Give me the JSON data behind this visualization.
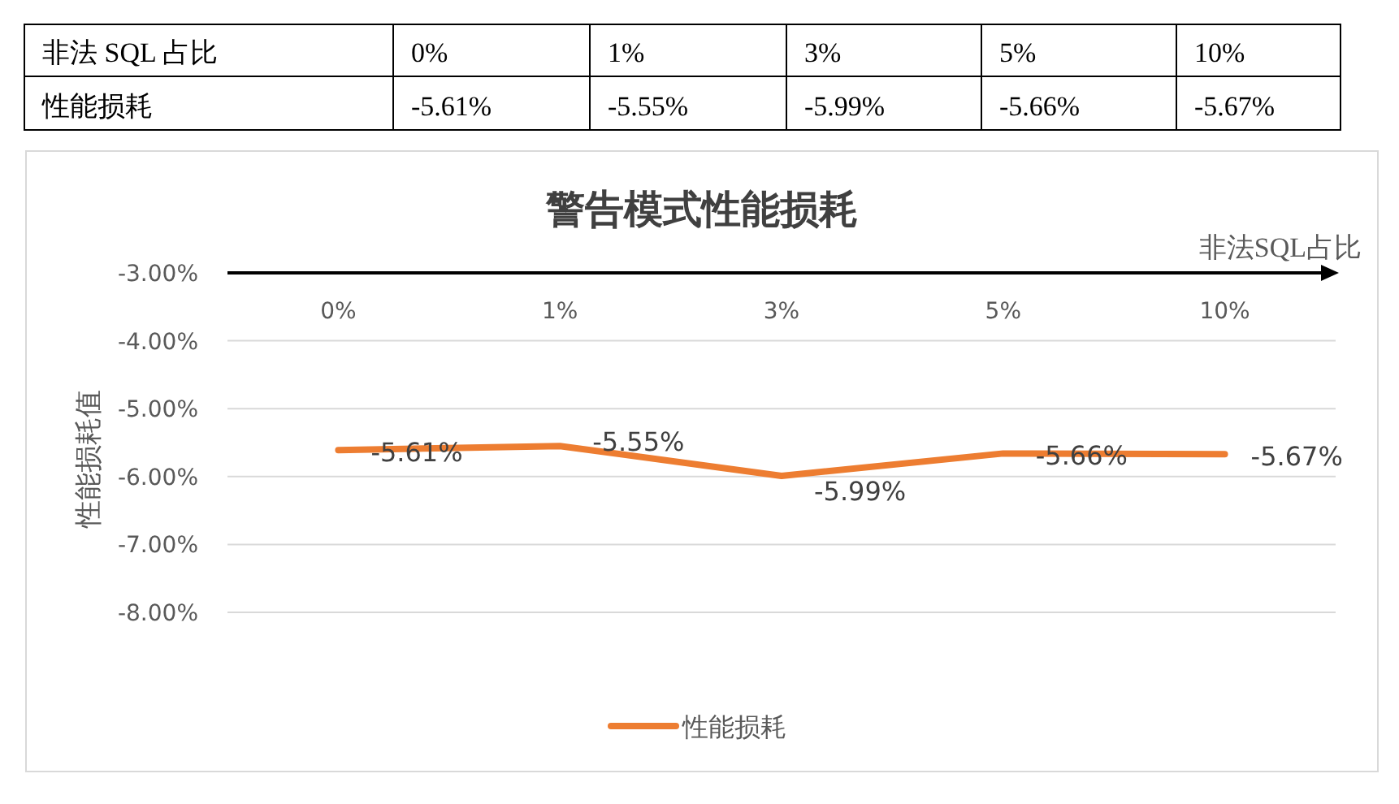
{
  "chart_data": {
    "type": "line",
    "title": "警告模式性能损耗",
    "xlabel": "非法SQL占比",
    "ylabel": "性能损耗值",
    "categories": [
      "0%",
      "1%",
      "3%",
      "5%",
      "10%"
    ],
    "series": [
      {
        "name": "性能损耗",
        "color": "#ed7d31",
        "values": [
          -5.61,
          -5.55,
          -5.99,
          -5.66,
          -5.67
        ],
        "value_labels": [
          "-5.61%",
          "-5.55%",
          "-5.99%",
          "-5.66%",
          "-5.67%"
        ]
      }
    ],
    "ylim": [
      -8,
      -3
    ],
    "yticks": [
      {
        "value": -3,
        "label": "-3.00%"
      },
      {
        "value": -4,
        "label": "-4.00%"
      },
      {
        "value": -5,
        "label": "-5.00%"
      },
      {
        "value": -6,
        "label": "-6.00%"
      },
      {
        "value": -7,
        "label": "-7.00%"
      },
      {
        "value": -8,
        "label": "-8.00%"
      }
    ],
    "annotations": [
      "非法 SQL 占比",
      "性能损耗"
    ],
    "grid": "y",
    "legend": "bottom",
    "marker": "none",
    "line_style": "solid"
  }
}
